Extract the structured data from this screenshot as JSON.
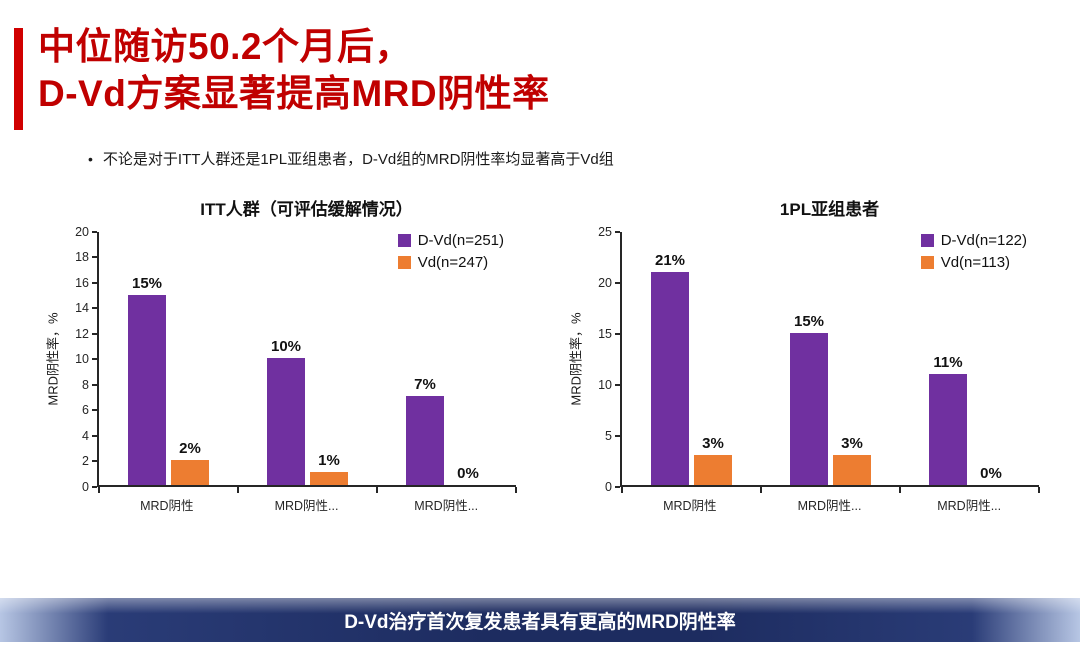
{
  "slide": {
    "title_line1": "中位随访50.2个月后，",
    "title_line2": "D-Vd方案显著提高MRD阴性率",
    "bullet_marker": "•",
    "bullet": "不论是对于ITT人群还是1PL亚组患者，D-Vd组的MRD阴性率均显著高于Vd组",
    "footer": "D-Vd治疗首次复发患者具有更高的MRD阴性率"
  },
  "colors": {
    "title_red": "#c00000",
    "accent_bar_red": "#d00000",
    "dvd_purple": "#7030A0",
    "vd_orange": "#ED7D31",
    "footer_navy": "#1d2c60",
    "axis_black": "#262626"
  },
  "chart_data": [
    {
      "type": "bar",
      "title": "ITT人群（可评估缓解情况）",
      "xlabel": "",
      "ylabel": "MRD阴性率，%",
      "ylim": [
        0,
        20
      ],
      "ytick_step": 2,
      "grid": false,
      "legend_position": "top-right",
      "categories": [
        "MRD阴性",
        "MRD阴性...",
        "MRD阴性..."
      ],
      "series": [
        {
          "name": "D-Vd(n=251)",
          "color": "#7030A0",
          "values": [
            15,
            10,
            7
          ],
          "labels": [
            "15%",
            "10%",
            "7%"
          ]
        },
        {
          "name": "Vd(n=247)",
          "color": "#ED7D31",
          "values": [
            2,
            1,
            0
          ],
          "labels": [
            "2%",
            "1%",
            "0%"
          ]
        }
      ]
    },
    {
      "type": "bar",
      "title": "1PL亚组患者",
      "xlabel": "",
      "ylabel": "MRD阴性率，%",
      "ylim": [
        0,
        25
      ],
      "ytick_step": 5,
      "grid": false,
      "legend_position": "top-right",
      "categories": [
        "MRD阴性",
        "MRD阴性...",
        "MRD阴性..."
      ],
      "series": [
        {
          "name": "D-Vd(n=122)",
          "color": "#7030A0",
          "values": [
            21,
            15,
            11
          ],
          "labels": [
            "21%",
            "15%",
            "11%"
          ]
        },
        {
          "name": "Vd(n=113)",
          "color": "#ED7D31",
          "values": [
            3,
            3,
            0
          ],
          "labels": [
            "3%",
            "3%",
            "0%"
          ]
        }
      ]
    }
  ]
}
